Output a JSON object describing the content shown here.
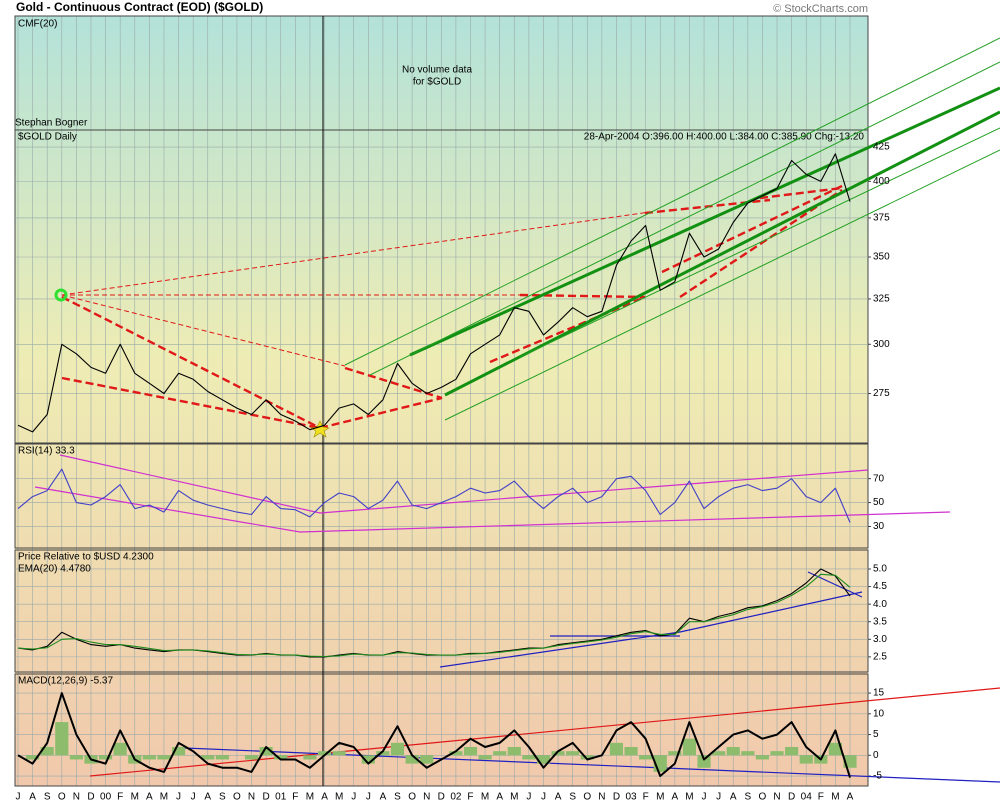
{
  "header": {
    "title": "Gold - Continuous Contract (EOD) ($GOLD)",
    "credit": "© StockCharts.com"
  },
  "chart_data": [
    {
      "type": "text",
      "label": "CMF(20)",
      "annotation": [
        "No volume data",
        "for $GOLD"
      ]
    },
    {
      "type": "line",
      "author": "Stephan Bogner",
      "subtitle": "$GOLD Daily",
      "quote": "28-Apr-2004 O:396.00 H:400.00 L:384.00 C:385.90 Chg:-13.20",
      "log": true,
      "ylim": [
        252,
        438
      ],
      "yticks": [
        275,
        300,
        325,
        350,
        375,
        400,
        425
      ],
      "grid": true,
      "series": [
        {
          "color": "#000000",
          "values": [
            260,
            257,
            265,
            300,
            295,
            288,
            285,
            300,
            285,
            280,
            275,
            285,
            282,
            276,
            272,
            268,
            265,
            272,
            265,
            262,
            258,
            260,
            268,
            270,
            265,
            272,
            290,
            280,
            275,
            278,
            282,
            295,
            300,
            305,
            320,
            318,
            305,
            312,
            320,
            315,
            318,
            345,
            360,
            370,
            330,
            335,
            365,
            350,
            355,
            372,
            385,
            390,
            395,
            415,
            405,
            400,
            420,
            386
          ]
        }
      ]
    },
    {
      "type": "line",
      "ylim": [
        12,
        99
      ],
      "yticks": [
        30,
        50,
        70
      ],
      "grid": true,
      "series": [
        {
          "name": "RSI(14) 33.3",
          "color": "#4040c8",
          "values": [
            45,
            55,
            60,
            78,
            50,
            48,
            55,
            65,
            45,
            48,
            42,
            60,
            52,
            48,
            45,
            42,
            40,
            55,
            45,
            44,
            38,
            50,
            58,
            55,
            45,
            52,
            68,
            48,
            45,
            50,
            55,
            62,
            58,
            60,
            68,
            55,
            45,
            55,
            62,
            50,
            55,
            70,
            72,
            60,
            40,
            50,
            68,
            45,
            55,
            62,
            65,
            60,
            62,
            70,
            55,
            50,
            62,
            33.3
          ]
        }
      ]
    },
    {
      "type": "line",
      "ylim": [
        2.07,
        5.54
      ],
      "yticks": [
        2.5,
        {
          "value": 3,
          "label": "3.0"
        },
        3.5,
        {
          "value": 4,
          "label": "4.0"
        },
        4.5,
        {
          "value": 5,
          "label": "5.0"
        }
      ],
      "grid": true,
      "series": [
        {
          "name": "Price Relative to $USD  4.2300",
          "color": "#000000",
          "values": [
            2.75,
            2.7,
            2.8,
            3.2,
            3.0,
            2.85,
            2.8,
            2.85,
            2.75,
            2.7,
            2.65,
            2.7,
            2.7,
            2.65,
            2.6,
            2.55,
            2.55,
            2.6,
            2.55,
            2.55,
            2.5,
            2.5,
            2.55,
            2.6,
            2.55,
            2.55,
            2.65,
            2.6,
            2.55,
            2.55,
            2.55,
            2.6,
            2.6,
            2.65,
            2.7,
            2.75,
            2.75,
            2.85,
            2.9,
            2.95,
            3.0,
            3.1,
            3.2,
            3.25,
            3.1,
            3.15,
            3.6,
            3.5,
            3.65,
            3.75,
            3.9,
            3.95,
            4.1,
            4.3,
            4.6,
            5.0,
            4.8,
            4.23
          ]
        },
        {
          "name": "EMA(20) 4.4780",
          "color": "#1e8a1e",
          "values": [
            2.75,
            2.72,
            2.76,
            3.0,
            3.02,
            2.92,
            2.85,
            2.85,
            2.8,
            2.74,
            2.68,
            2.69,
            2.7,
            2.67,
            2.62,
            2.57,
            2.56,
            2.58,
            2.56,
            2.55,
            2.52,
            2.51,
            2.53,
            2.58,
            2.56,
            2.55,
            2.62,
            2.61,
            2.57,
            2.55,
            2.55,
            2.58,
            2.6,
            2.63,
            2.68,
            2.73,
            2.75,
            2.82,
            2.88,
            2.93,
            2.98,
            3.06,
            3.16,
            3.22,
            3.14,
            3.14,
            3.5,
            3.5,
            3.6,
            3.7,
            3.85,
            3.93,
            4.05,
            4.25,
            4.5,
            4.85,
            4.82,
            4.478
          ]
        }
      ]
    },
    {
      "type": "line",
      "ylim": [
        -7.4,
        19.6
      ],
      "yticks": [
        -5,
        0,
        5,
        10,
        15
      ],
      "grid": true,
      "categories": [
        "J",
        "A",
        "S",
        "O",
        "N",
        "D",
        "00",
        "F",
        "M",
        "A",
        "M",
        "J",
        "J",
        "A",
        "S",
        "O",
        "N",
        "D",
        "01",
        "F",
        "M",
        "A",
        "M",
        "J",
        "J",
        "A",
        "S",
        "O",
        "N",
        "D",
        "02",
        "F",
        "M",
        "A",
        "M",
        "J",
        "J",
        "A",
        "S",
        "O",
        "N",
        "D",
        "03",
        "F",
        "M",
        "A",
        "M",
        "J",
        "J",
        "A",
        "S",
        "O",
        "N",
        "D",
        "04",
        "F",
        "M",
        "A"
      ],
      "series": [
        {
          "kind": "bar",
          "color": "#8cbc6c",
          "values": [
            0,
            -1,
            2,
            8,
            -1,
            -2,
            -1,
            3,
            -2,
            -1,
            -1,
            2,
            0,
            -1,
            -1,
            0,
            -1,
            2,
            -1,
            0,
            -1,
            1,
            1,
            0,
            -2,
            1,
            3,
            -2,
            -2,
            0,
            1,
            2,
            -1,
            1,
            2,
            -1,
            -2,
            1,
            1,
            -1,
            0,
            3,
            2,
            -1,
            -4,
            1,
            4,
            -3,
            1,
            2,
            1,
            -1,
            1,
            2,
            -2,
            -2,
            3,
            -3
          ]
        },
        {
          "name": "MACD(12,26,9) -5.37",
          "color": "#000000",
          "values": [
            0,
            -2,
            3,
            15,
            5,
            -1,
            -2,
            6,
            -1,
            -3,
            -4,
            3,
            1,
            -2,
            -3,
            -3,
            -4,
            2,
            -1,
            -1,
            -3,
            0,
            3,
            2,
            -2,
            1,
            7,
            0,
            -3,
            -1,
            1,
            4,
            2,
            3,
            6,
            2,
            -3,
            1,
            3,
            -1,
            0,
            6,
            8,
            4,
            -5,
            -2,
            8,
            -1,
            2,
            5,
            6,
            4,
            5,
            8,
            2,
            -1,
            6,
            -5.37
          ]
        }
      ]
    }
  ]
}
